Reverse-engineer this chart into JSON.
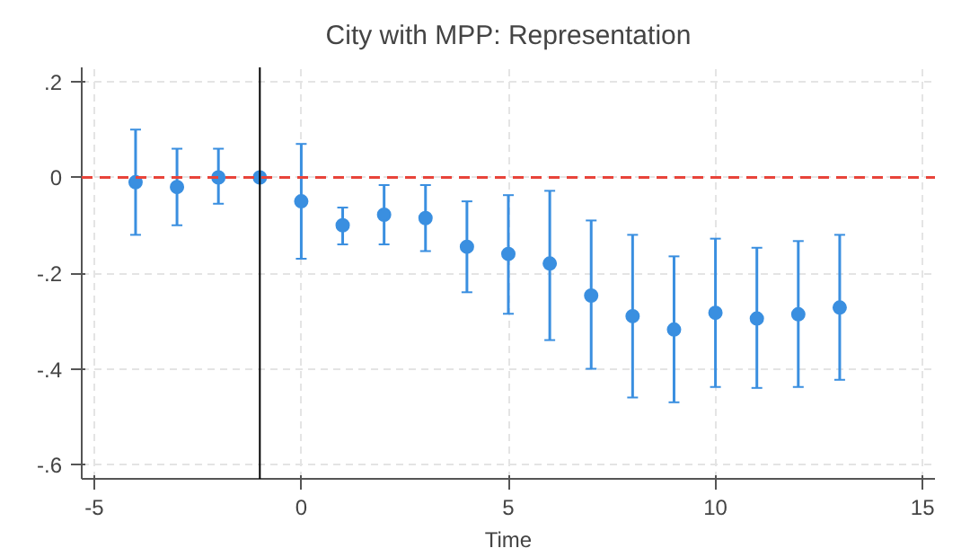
{
  "chart_data": {
    "type": "scatter",
    "title": "City with MPP: Representation",
    "xlabel": "Time",
    "x": [
      -4,
      -3,
      -2,
      -1,
      0,
      1,
      2,
      3,
      4,
      5,
      6,
      7,
      8,
      9,
      10,
      11,
      12,
      13
    ],
    "series": [
      {
        "color": "#3a8fe0",
        "values": [
          -0.01,
          -0.02,
          0.0,
          0.0,
          -0.05,
          -0.1,
          -0.078,
          -0.085,
          -0.145,
          -0.16,
          -0.18,
          -0.247,
          -0.29,
          -0.318,
          -0.283,
          -0.295,
          -0.286,
          -0.272
        ],
        "errors": [
          [
            -0.12,
            0.1
          ],
          [
            -0.1,
            0.06
          ],
          [
            -0.055,
            0.06
          ],
          null,
          [
            -0.17,
            0.07
          ],
          [
            -0.14,
            -0.063
          ],
          [
            -0.14,
            -0.016
          ],
          [
            -0.154,
            -0.016
          ],
          [
            -0.24,
            -0.05
          ],
          [
            -0.285,
            -0.037
          ],
          [
            -0.34,
            -0.028
          ],
          [
            -0.4,
            -0.09
          ],
          [
            -0.46,
            -0.12
          ],
          [
            -0.47,
            -0.165
          ],
          [
            -0.438,
            -0.128
          ],
          [
            -0.44,
            -0.147
          ],
          [
            -0.438,
            -0.133
          ],
          [
            -0.423,
            -0.12
          ]
        ]
      }
    ],
    "xlim": [
      -5.3,
      15.3
    ],
    "ylim": [
      -0.63,
      0.23
    ],
    "xticks": [
      -5,
      0,
      5,
      10,
      15
    ],
    "yticks": [
      {
        "value": -0.6,
        "label": "-.6"
      },
      {
        "value": -0.4,
        "label": "-.4"
      },
      {
        "value": -0.2,
        "label": "-.2"
      },
      0,
      {
        "value": 0.2,
        "label": ".2"
      }
    ],
    "ref_lines": [
      {
        "axis": "y",
        "value": 0,
        "color": "#e8443a",
        "line_style": "dashed"
      },
      {
        "axis": "x",
        "value": -1,
        "color": "#000000",
        "line_style": "solid"
      }
    ],
    "grid": true,
    "marker": "circle"
  }
}
